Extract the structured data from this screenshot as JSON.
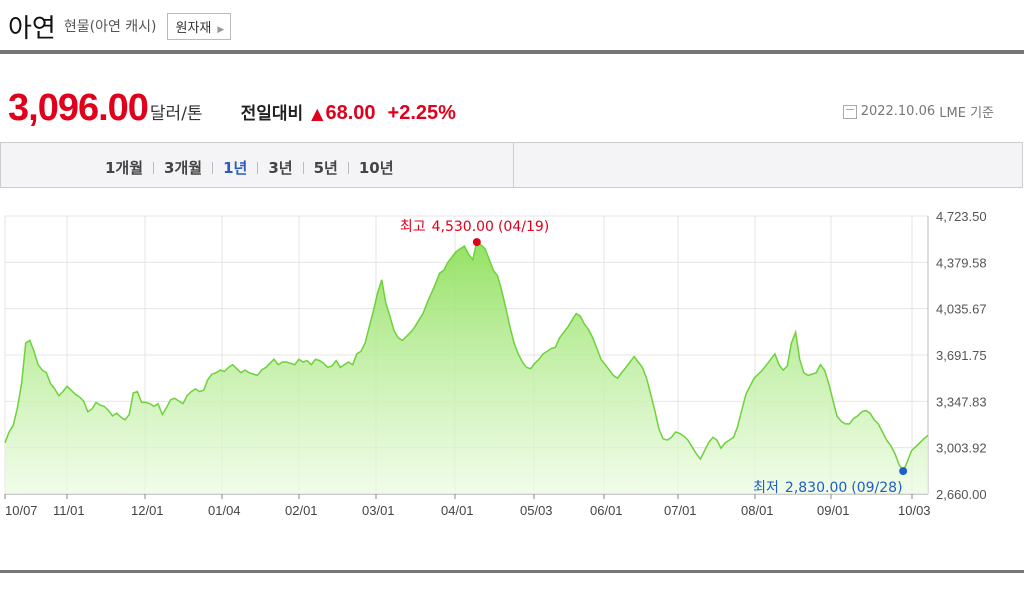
{
  "header": {
    "title": "아연",
    "subtitle": "현물(아연 캐시)",
    "raw_button": "원자재"
  },
  "price": {
    "value": "3,096.00",
    "unit": "달러/톤",
    "compare_label": "전일대비",
    "change": "68.00",
    "change_pct": "+2.25%",
    "date": "2022.10.06",
    "source": "LME 기준",
    "up_color": "#e0001b"
  },
  "tabs": [
    {
      "label": "1개월",
      "active": false
    },
    {
      "label": "3개월",
      "active": false
    },
    {
      "label": "1년",
      "active": true
    },
    {
      "label": "3년",
      "active": false
    },
    {
      "label": "5년",
      "active": false
    },
    {
      "label": "10년",
      "active": false
    }
  ],
  "chart_data": {
    "type": "area",
    "ylim": [
      2660.0,
      4723.5
    ],
    "yticks": [
      "4,723.50",
      "4,379.58",
      "4,035.67",
      "3,691.75",
      "3,347.83",
      "3,003.92",
      "2,660.00"
    ],
    "xticks": [
      "10/07",
      "11/01",
      "12/01",
      "01/04",
      "02/01",
      "03/01",
      "04/01",
      "05/03",
      "06/01",
      "07/01",
      "08/01",
      "09/01",
      "10/03"
    ],
    "grid": true,
    "high": {
      "label": "최고",
      "value_text": "4,530.00",
      "date": "(04/19)",
      "value": 4530.0,
      "color": "#e0001b"
    },
    "low": {
      "label": "최저",
      "value_text": "2,830.00",
      "date": "(09/28)",
      "value": 2830.0,
      "color": "#1e5fc4"
    },
    "line_color": "#6dd23a",
    "series": [
      {
        "values": [
          3040,
          3120,
          3170,
          3300,
          3480,
          3780,
          3800,
          3720,
          3620,
          3580,
          3560,
          3480,
          3440,
          3390,
          3420,
          3460,
          3430,
          3400,
          3380,
          3350,
          3270,
          3290,
          3340,
          3320,
          3310,
          3280,
          3240,
          3260,
          3230,
          3210,
          3250,
          3410,
          3420,
          3340,
          3340,
          3330,
          3310,
          3330,
          3250,
          3300,
          3360,
          3370,
          3350,
          3330,
          3390,
          3420,
          3440,
          3420,
          3430,
          3510,
          3550,
          3560,
          3580,
          3570,
          3600,
          3620,
          3590,
          3560,
          3580,
          3560,
          3550,
          3540,
          3580,
          3600,
          3630,
          3660,
          3620,
          3640,
          3640,
          3630,
          3620,
          3660,
          3640,
          3650,
          3620,
          3660,
          3650,
          3630,
          3600,
          3610,
          3650,
          3600,
          3620,
          3640,
          3620,
          3700,
          3720,
          3780,
          3900,
          4020,
          4150,
          4250,
          4080,
          3980,
          3870,
          3820,
          3800,
          3830,
          3860,
          3900,
          3950,
          4000,
          4080,
          4150,
          4220,
          4300,
          4320,
          4380,
          4420,
          4460,
          4480,
          4500,
          4440,
          4400,
          4530,
          4510,
          4480,
          4400,
          4320,
          4280,
          4170,
          4040,
          3900,
          3780,
          3700,
          3640,
          3600,
          3590,
          3630,
          3660,
          3700,
          3720,
          3740,
          3750,
          3820,
          3860,
          3900,
          3950,
          4000,
          3980,
          3920,
          3880,
          3820,
          3740,
          3660,
          3620,
          3580,
          3540,
          3520,
          3560,
          3600,
          3640,
          3680,
          3640,
          3600,
          3520,
          3400,
          3280,
          3140,
          3070,
          3060,
          3080,
          3120,
          3110,
          3090,
          3060,
          3010,
          2960,
          2920,
          2980,
          3040,
          3080,
          3060,
          3000,
          3040,
          3060,
          3080,
          3160,
          3280,
          3400,
          3460,
          3520,
          3550,
          3580,
          3620,
          3660,
          3700,
          3620,
          3580,
          3610,
          3780,
          3860,
          3660,
          3560,
          3540,
          3550,
          3560,
          3620,
          3580,
          3480,
          3360,
          3240,
          3200,
          3180,
          3180,
          3220,
          3240,
          3270,
          3280,
          3260,
          3210,
          3180,
          3120,
          3060,
          3020,
          2960,
          2880,
          2830,
          2900,
          2980,
          3010,
          3040,
          3070,
          3096
        ]
      }
    ]
  }
}
